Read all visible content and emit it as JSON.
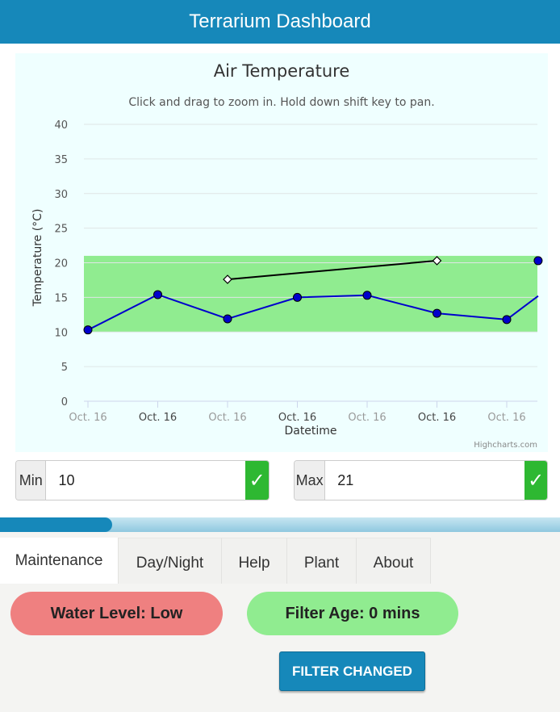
{
  "app": {
    "title": "Terrarium Dashboard"
  },
  "chart_data": {
    "type": "line",
    "title": "Air Temperature",
    "subtitle": "Click and drag to zoom in. Hold down shift key to pan.",
    "xlabel": "Datetime",
    "ylabel": "Temperature (°C)",
    "ylim": [
      0,
      40
    ],
    "yticks": [
      "0",
      "5",
      "10",
      "15",
      "20",
      "25",
      "30",
      "35",
      "40"
    ],
    "xtick_labels": [
      "Oct. 16",
      "Oct. 16",
      "Oct. 16",
      "Oct. 16",
      "Oct. 16",
      "Oct. 16",
      "Oct. 16"
    ],
    "grid": true,
    "band": {
      "from": 10,
      "to": 21,
      "color": "#90ec90"
    },
    "series": [
      {
        "color": "#0000cc",
        "marker": "circle",
        "x": [
          0.0,
          1.0,
          2.0,
          3.0,
          4.0,
          5.0,
          6.0,
          6.45
        ],
        "values": [
          10.3,
          15.4,
          11.9,
          15.0,
          15.3,
          12.7,
          11.8,
          15.2
        ]
      },
      {
        "color": "#000000",
        "marker": "diamond",
        "x": [
          2.0,
          5.0
        ],
        "values": [
          17.6,
          20.3
        ]
      }
    ],
    "extra_point": {
      "x": 6.45,
      "value": 20.3,
      "color": "#0000cc"
    },
    "credit": "Highcharts.com"
  },
  "controls": {
    "min": {
      "label": "Min",
      "value": "10",
      "button": "✓"
    },
    "max": {
      "label": "Max",
      "value": "21",
      "button": "✓"
    }
  },
  "progress": {
    "fraction": 0.2
  },
  "tabs": [
    {
      "label": "Maintenance",
      "active": true
    },
    {
      "label": "Day/Night"
    },
    {
      "label": "Help"
    },
    {
      "label": "Plant"
    },
    {
      "label": "About"
    }
  ],
  "maintenance": {
    "water_level": "Water Level: Low",
    "filter_age": "Filter Age: 0 mins",
    "filter_button": "FILTER CHANGED"
  },
  "colors": {
    "accent": "#1688ba",
    "ok": "#2eb832",
    "alert": "#ef8080",
    "good": "#90ec90"
  }
}
